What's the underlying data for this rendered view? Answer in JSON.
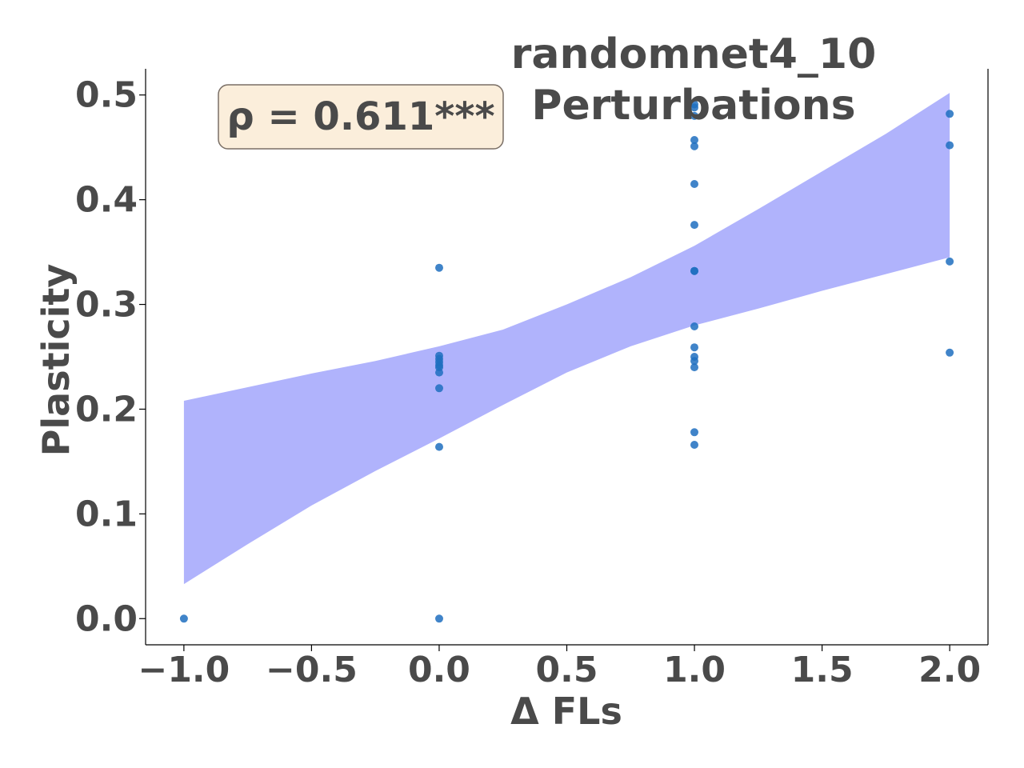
{
  "chart_data": {
    "type": "scatter",
    "title_lines": [
      "randomnet4_10",
      "Perturbations"
    ],
    "xlabel": "Δ FLs",
    "ylabel": "Plasticity",
    "xlim": [
      -1.15,
      2.15
    ],
    "ylim": [
      -0.025,
      0.525
    ],
    "xticks": [
      -1.0,
      -0.5,
      0.0,
      0.5,
      1.0,
      1.5,
      2.0
    ],
    "xtick_labels": [
      "−1.0",
      "−0.5",
      "0.0",
      "0.5",
      "1.0",
      "1.5",
      "2.0"
    ],
    "yticks": [
      0.0,
      0.1,
      0.2,
      0.3,
      0.4,
      0.5
    ],
    "ytick_labels": [
      "0.0",
      "0.1",
      "0.2",
      "0.3",
      "0.4",
      "0.5"
    ],
    "annotation": "ρ = 0.611***",
    "points": [
      {
        "x": -1.0,
        "y": 0.0
      },
      {
        "x": 0.0,
        "y": 0.0
      },
      {
        "x": 0.0,
        "y": 0.164
      },
      {
        "x": 0.0,
        "y": 0.22
      },
      {
        "x": 0.0,
        "y": 0.235
      },
      {
        "x": 0.0,
        "y": 0.24
      },
      {
        "x": 0.0,
        "y": 0.242
      },
      {
        "x": 0.0,
        "y": 0.245
      },
      {
        "x": 0.0,
        "y": 0.248
      },
      {
        "x": 0.0,
        "y": 0.251
      },
      {
        "x": 0.0,
        "y": 0.335
      },
      {
        "x": 1.0,
        "y": 0.166
      },
      {
        "x": 1.0,
        "y": 0.178
      },
      {
        "x": 1.0,
        "y": 0.24
      },
      {
        "x": 1.0,
        "y": 0.246
      },
      {
        "x": 1.0,
        "y": 0.25
      },
      {
        "x": 1.0,
        "y": 0.259
      },
      {
        "x": 1.0,
        "y": 0.279
      },
      {
        "x": 1.0,
        "y": 0.332
      },
      {
        "x": 1.0,
        "y": 0.332
      },
      {
        "x": 1.0,
        "y": 0.376
      },
      {
        "x": 1.0,
        "y": 0.415
      },
      {
        "x": 1.0,
        "y": 0.451
      },
      {
        "x": 1.0,
        "y": 0.457
      },
      {
        "x": 1.0,
        "y": 0.48
      },
      {
        "x": 1.0,
        "y": 0.488
      },
      {
        "x": 1.0,
        "y": 0.491
      },
      {
        "x": 2.0,
        "y": 0.254
      },
      {
        "x": 2.0,
        "y": 0.341
      },
      {
        "x": 2.0,
        "y": 0.452
      },
      {
        "x": 2.0,
        "y": 0.482
      }
    ],
    "confidence_band": {
      "upper": [
        [
          -1.0,
          0.208
        ],
        [
          -0.75,
          0.221
        ],
        [
          -0.5,
          0.234
        ],
        [
          -0.25,
          0.246
        ],
        [
          0.0,
          0.26
        ],
        [
          0.25,
          0.276
        ],
        [
          0.5,
          0.3
        ],
        [
          0.75,
          0.326
        ],
        [
          1.0,
          0.356
        ],
        [
          1.25,
          0.391
        ],
        [
          1.5,
          0.427
        ],
        [
          1.75,
          0.463
        ],
        [
          2.0,
          0.502
        ]
      ],
      "lower": [
        [
          -1.0,
          0.033
        ],
        [
          -0.75,
          0.071
        ],
        [
          -0.5,
          0.108
        ],
        [
          -0.25,
          0.141
        ],
        [
          0.0,
          0.172
        ],
        [
          0.25,
          0.204
        ],
        [
          0.5,
          0.235
        ],
        [
          0.75,
          0.26
        ],
        [
          1.0,
          0.28
        ],
        [
          1.25,
          0.296
        ],
        [
          1.5,
          0.313
        ],
        [
          1.75,
          0.329
        ],
        [
          2.0,
          0.345
        ]
      ]
    },
    "colors": {
      "points": "#1f6fbf",
      "band": "#b0b3fc",
      "text": "#4a4a4a",
      "annotation_bg": "#fbeedb",
      "annotation_border": "#7a6f66"
    },
    "grid": false
  }
}
